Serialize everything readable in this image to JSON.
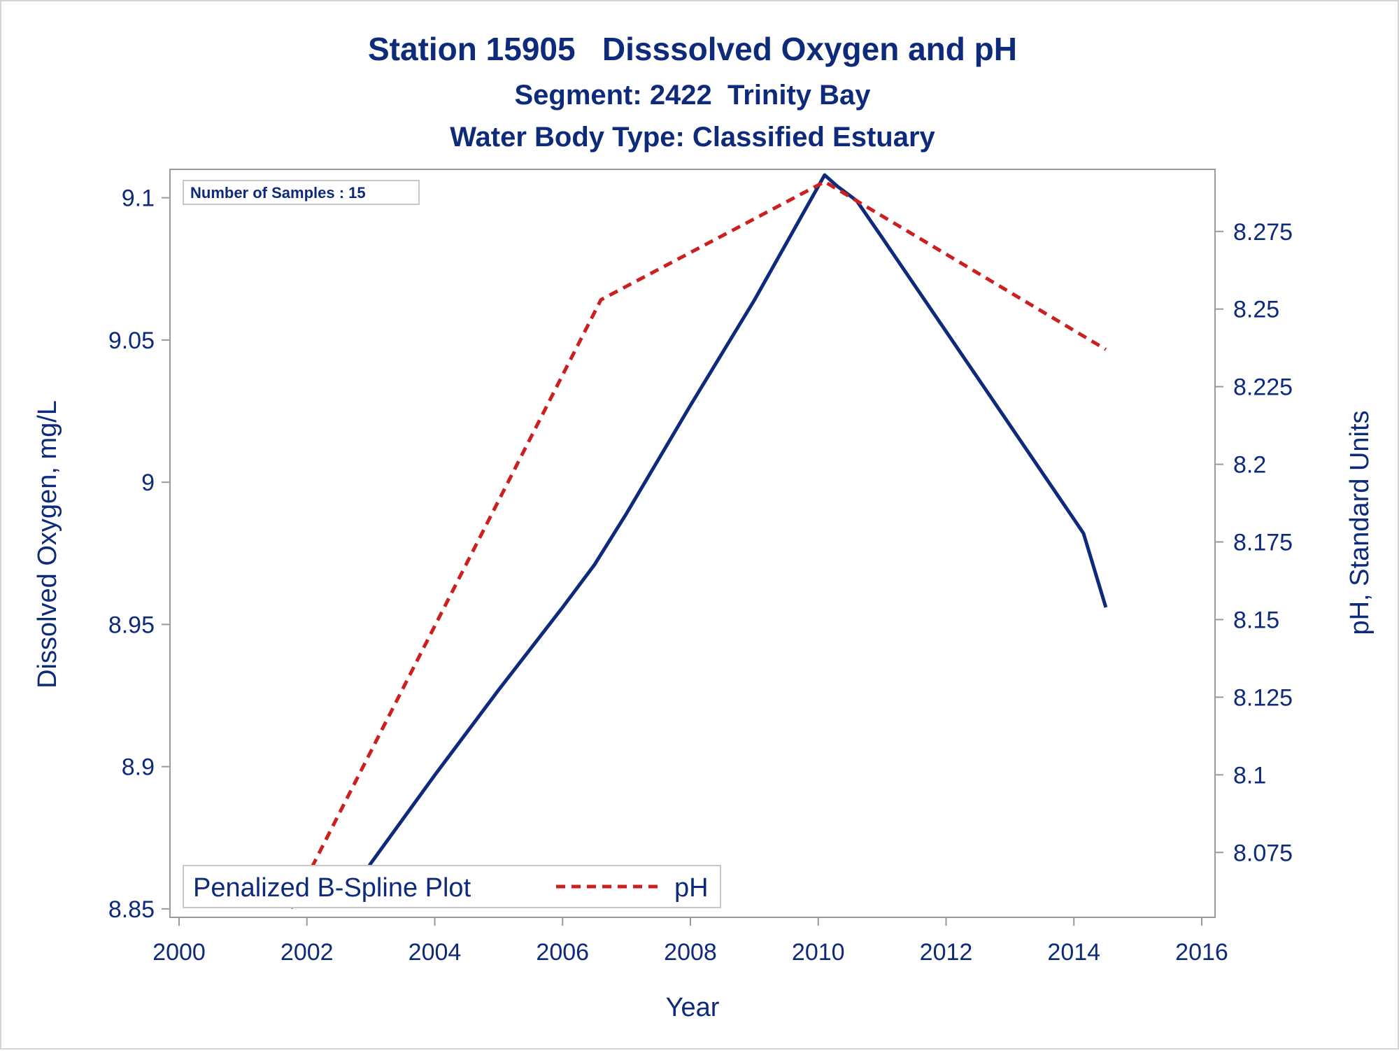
{
  "chart_data": {
    "type": "line",
    "title": "Station 15905   Disssolved Oxygen and pH",
    "subtitle": "Segment: 2422  Trinity Bay",
    "subtitle2": "Water Body Type: Classified Estuary",
    "xlabel": "Year",
    "ylabel": "Dissolved Oxygen, mg/L",
    "y2label": "pH, Standard Units",
    "xlim": [
      2000,
      2016
    ],
    "ylim": [
      8.848,
      9.11
    ],
    "y2lim": [
      8.055,
      8.295
    ],
    "x_ticks": [
      "2000",
      "2002",
      "2004",
      "2006",
      "2008",
      "2010",
      "2012",
      "2014",
      "2016"
    ],
    "y_ticks": [
      "8.85",
      "8.9",
      "8.95",
      "9",
      "9.05",
      "9.1"
    ],
    "y2_ticks": [
      "8.075",
      "8.1",
      "8.125",
      "8.15",
      "8.175",
      "8.2",
      "8.225",
      "8.25",
      "8.275"
    ],
    "inset_text": "Number of Samples : 15",
    "grid": false,
    "legend_position": "bottom-left",
    "series": [
      {
        "name": "Penalized B-Spline Plot",
        "axis": "left",
        "color": "#0e2a7a",
        "style": "solid",
        "x": [
          2001.75,
          2002.0,
          2002.3,
          2002.7,
          2003.0,
          2004.0,
          2005.0,
          2006.0,
          2006.5,
          2007.0,
          2008.0,
          2009.0,
          2009.8,
          2010.1,
          2010.3,
          2010.6,
          2011.0,
          2012.0,
          2013.0,
          2014.0,
          2014.15,
          2014.5
        ],
        "y": [
          8.856,
          8.854,
          8.854,
          8.855,
          8.866,
          8.897,
          8.927,
          8.956,
          8.971,
          8.989,
          9.027,
          9.064,
          9.096,
          9.108,
          9.104,
          9.099,
          9.086,
          9.053,
          9.02,
          8.987,
          8.982,
          8.956
        ]
      },
      {
        "name": "pH",
        "axis": "right",
        "color": "#cc1f1f",
        "style": "dashed",
        "x": [
          2001.75,
          2006.6,
          2010.1,
          2014.5
        ],
        "y": [
          8.057,
          8.253,
          8.291,
          8.237
        ]
      }
    ]
  }
}
